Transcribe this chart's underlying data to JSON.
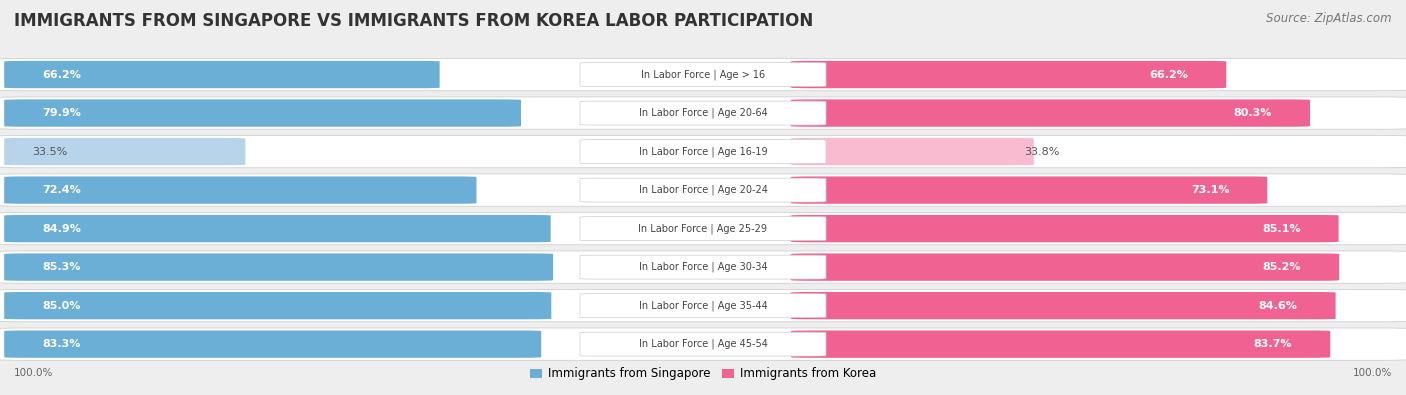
{
  "title": "IMMIGRANTS FROM SINGAPORE VS IMMIGRANTS FROM KOREA LABOR PARTICIPATION",
  "source": "Source: ZipAtlas.com",
  "categories": [
    "In Labor Force | Age > 16",
    "In Labor Force | Age 20-64",
    "In Labor Force | Age 16-19",
    "In Labor Force | Age 20-24",
    "In Labor Force | Age 25-29",
    "In Labor Force | Age 30-34",
    "In Labor Force | Age 35-44",
    "In Labor Force | Age 45-54"
  ],
  "singapore_values": [
    66.2,
    79.9,
    33.5,
    72.4,
    84.9,
    85.3,
    85.0,
    83.3
  ],
  "korea_values": [
    66.2,
    80.3,
    33.8,
    73.1,
    85.1,
    85.2,
    84.6,
    83.7
  ],
  "singapore_color": "#6baed6",
  "singapore_color_light": "#b8d4ea",
  "korea_color": "#f06292",
  "korea_color_light": "#f8bbd0",
  "label_singapore": "Immigrants from Singapore",
  "label_korea": "Immigrants from Korea",
  "bg_color": "#eeeeee",
  "title_fontsize": 12,
  "source_fontsize": 8.5,
  "bar_label_fontsize": 8,
  "category_fontsize": 7,
  "legend_fontsize": 8.5,
  "footer_fontsize": 7.5
}
